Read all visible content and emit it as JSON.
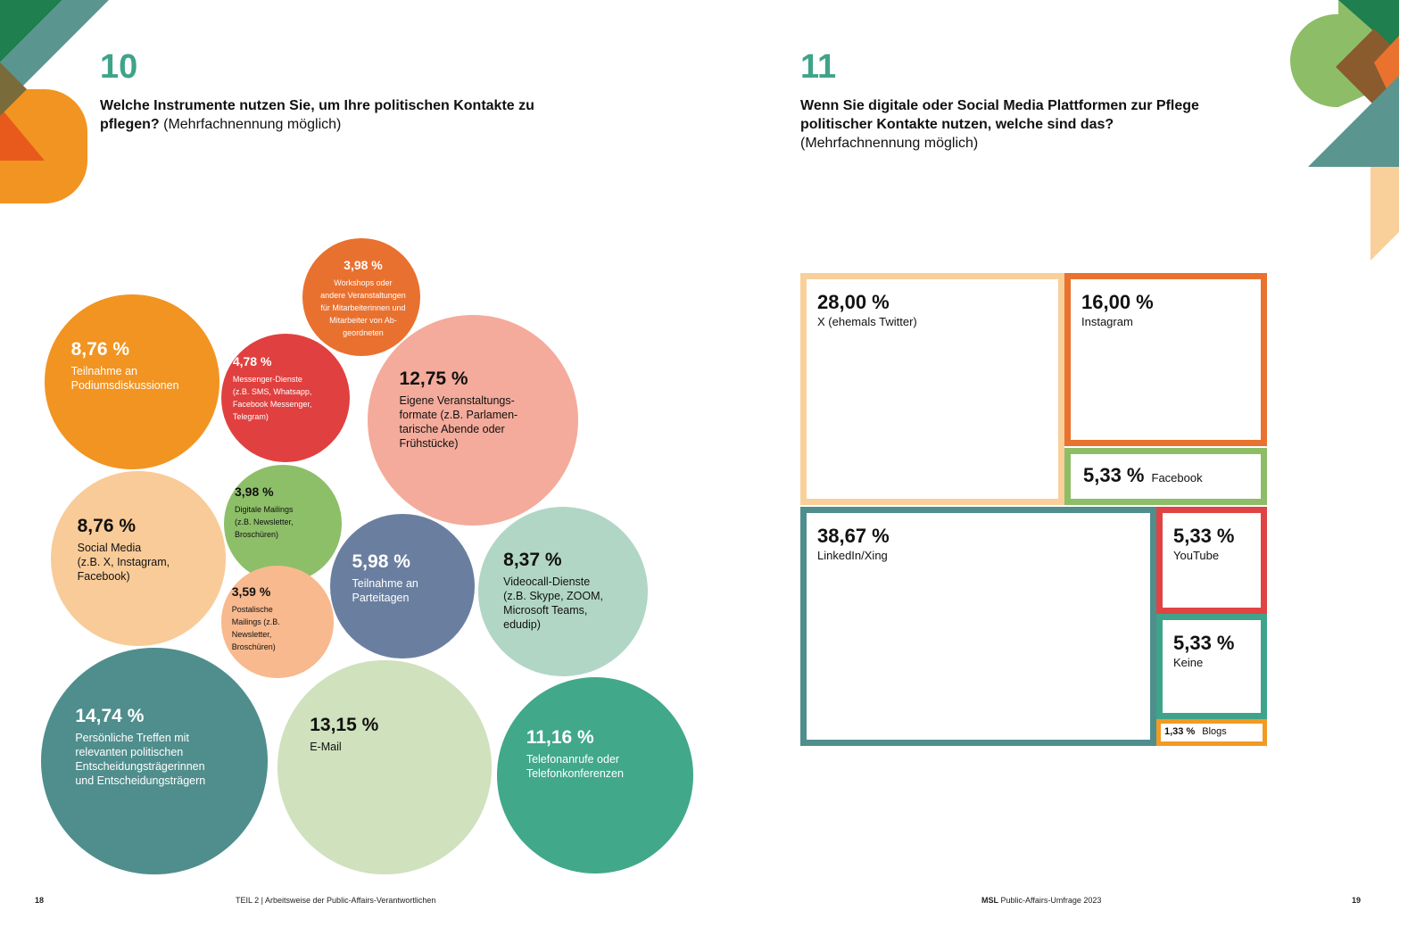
{
  "pages": {
    "left": {
      "number": "18",
      "footer": "TEIL 2 | Arbeitsweise der Public-Affairs-Verantwortlichen"
    },
    "right": {
      "number": "19",
      "footer_brand": "MSL",
      "footer": "Public-Affairs-Umfrage 2023"
    }
  },
  "chart_data": [
    {
      "type": "bubble",
      "number": "10",
      "title": "Welche Instrumente nutzen Sie, um Ihre politischen Kontakte zu pflegen?",
      "subtitle": "(Mehrfachnennung möglich)",
      "categories": [
        "Workshops oder\nandere Veranstaltungen\nfür Mitarbeiterinnen und\nMitarbeiter von Ab-\ngeordneten",
        "Teilnahme an\nPodiumsdiskussionen",
        "Messenger-Dienste\n(z.B. SMS, Whatsapp,\nFacebook Messenger,\nTelegram)",
        "Eigene Veranstaltungs-\nformate (z.B. Parlamen-\ntarische Abende oder\nFrühstücke)",
        "Social Media\n(z.B. X, Instagram,\nFacebook)",
        "Digitale Mailings\n(z.B. Newsletter,\nBroschüren)",
        "Teilnahme an\nParteitagen",
        "Videocall-Dienste\n(z.B. Skype, ZOOM,\nMicrosoft Teams,\nedudip)",
        "Postalische\nMailings (z.B.\nNewsletter,\nBroschüren)",
        "Persönliche Treffen mit\nrelevanten politischen\nEntscheidungsträgerinnen\nund Entscheidungsträgern",
        "E-Mail",
        "Telefonanrufe oder\nTelefonkonferenzen"
      ],
      "values": [
        3.98,
        8.76,
        4.78,
        12.75,
        8.76,
        3.98,
        5.98,
        8.37,
        3.59,
        14.74,
        13.15,
        11.16
      ],
      "value_labels": [
        "3,98 %",
        "8,76 %",
        "4,78 %",
        "12,75 %",
        "8,76 %",
        "3,98 %",
        "5,98 %",
        "8,37 %",
        "3,59 %",
        "14,74 %",
        "13,15 %",
        "11,16 %"
      ],
      "colors": [
        "#e9712f",
        "#f29421",
        "#e0403f",
        "#f4ab9b",
        "#f9cb98",
        "#8dbf68",
        "#6a7fa0",
        "#b1d6c6",
        "#f8b98e",
        "#4f8e8c",
        "#cfe1bd",
        "#42a88a"
      ]
    },
    {
      "type": "treemap",
      "number": "11",
      "title": "Wenn Sie digitale oder Social Media Plattformen zur Pflege politischer Kontakte nutzen, welche sind das?",
      "subtitle": "(Mehrfachnennung möglich)",
      "categories": [
        "X (ehemals Twitter)",
        "Instagram",
        "Facebook",
        "LinkedIn/Xing",
        "YouTube",
        "Keine",
        "Blogs"
      ],
      "values": [
        28.0,
        16.0,
        5.33,
        38.67,
        5.33,
        5.33,
        1.33
      ],
      "value_labels": [
        "28,00 %",
        "16,00 %",
        "5,33 %",
        "38,67 %",
        "5,33 %",
        "5,33 %",
        "1,33 %"
      ],
      "colors": [
        "#f9cf9a",
        "#e8722e",
        "#8dbd67",
        "#4f8e8c",
        "#e04343",
        "#3fa38a",
        "#f29a23"
      ]
    }
  ]
}
